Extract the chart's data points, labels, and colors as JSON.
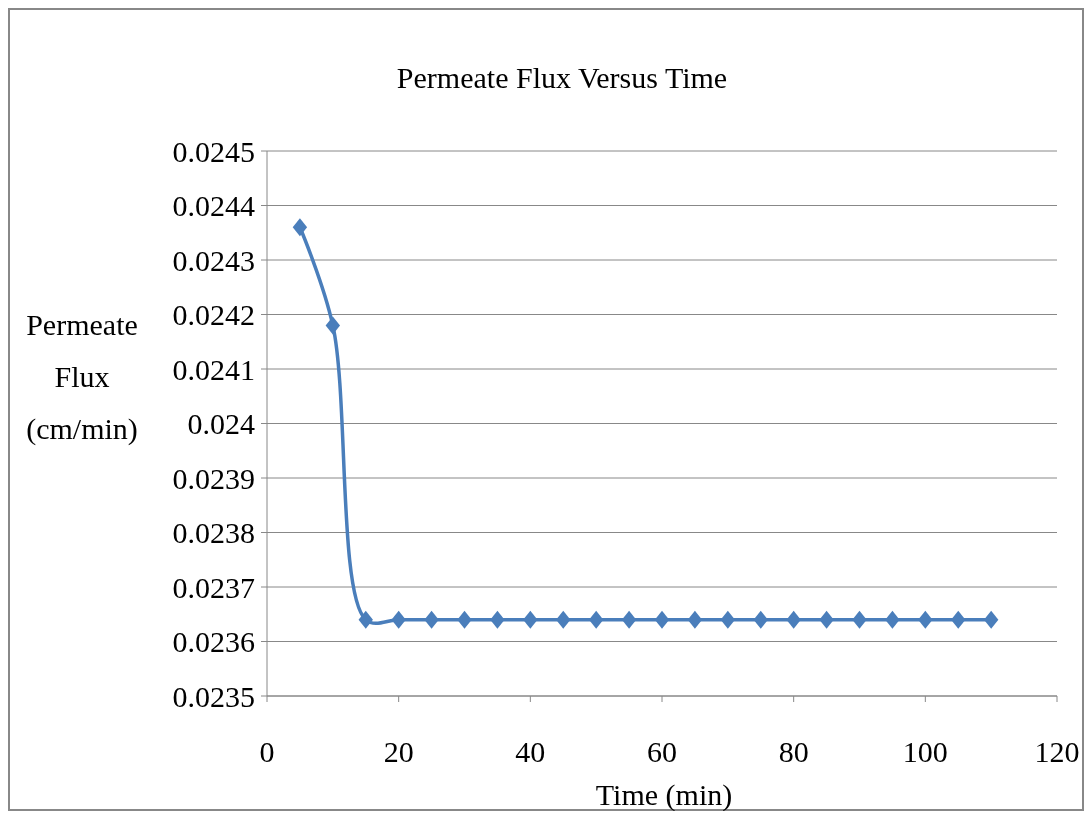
{
  "chart_data": {
    "type": "line",
    "title": "Permeate Flux Versus Time",
    "xlabel": "Time (min)",
    "ylabel": "Permeate Flux (cm/min)",
    "x": [
      5,
      10,
      15,
      20,
      25,
      30,
      35,
      40,
      45,
      50,
      55,
      60,
      65,
      70,
      75,
      80,
      85,
      90,
      95,
      100,
      105,
      110
    ],
    "series": [
      {
        "color": "#4a7ebb",
        "values": [
          0.02436,
          0.02418,
          0.02364,
          0.02364,
          0.02364,
          0.02364,
          0.02364,
          0.02364,
          0.02364,
          0.02364,
          0.02364,
          0.02364,
          0.02364,
          0.02364,
          0.02364,
          0.02364,
          0.02364,
          0.02364,
          0.02364,
          0.02364,
          0.02364,
          0.02364
        ]
      }
    ],
    "xlim": [
      0,
      120
    ],
    "xticks": [
      0,
      20,
      40,
      60,
      80,
      100,
      120
    ],
    "ylim": [
      0.0235,
      0.0245
    ],
    "yticks": [
      0.0235,
      0.0236,
      0.0237,
      0.0238,
      0.0239,
      0.024,
      0.0241,
      0.0242,
      0.0243,
      0.0244,
      0.0245
    ],
    "grid": "y",
    "marker": "diamond",
    "line_style": "solid"
  }
}
